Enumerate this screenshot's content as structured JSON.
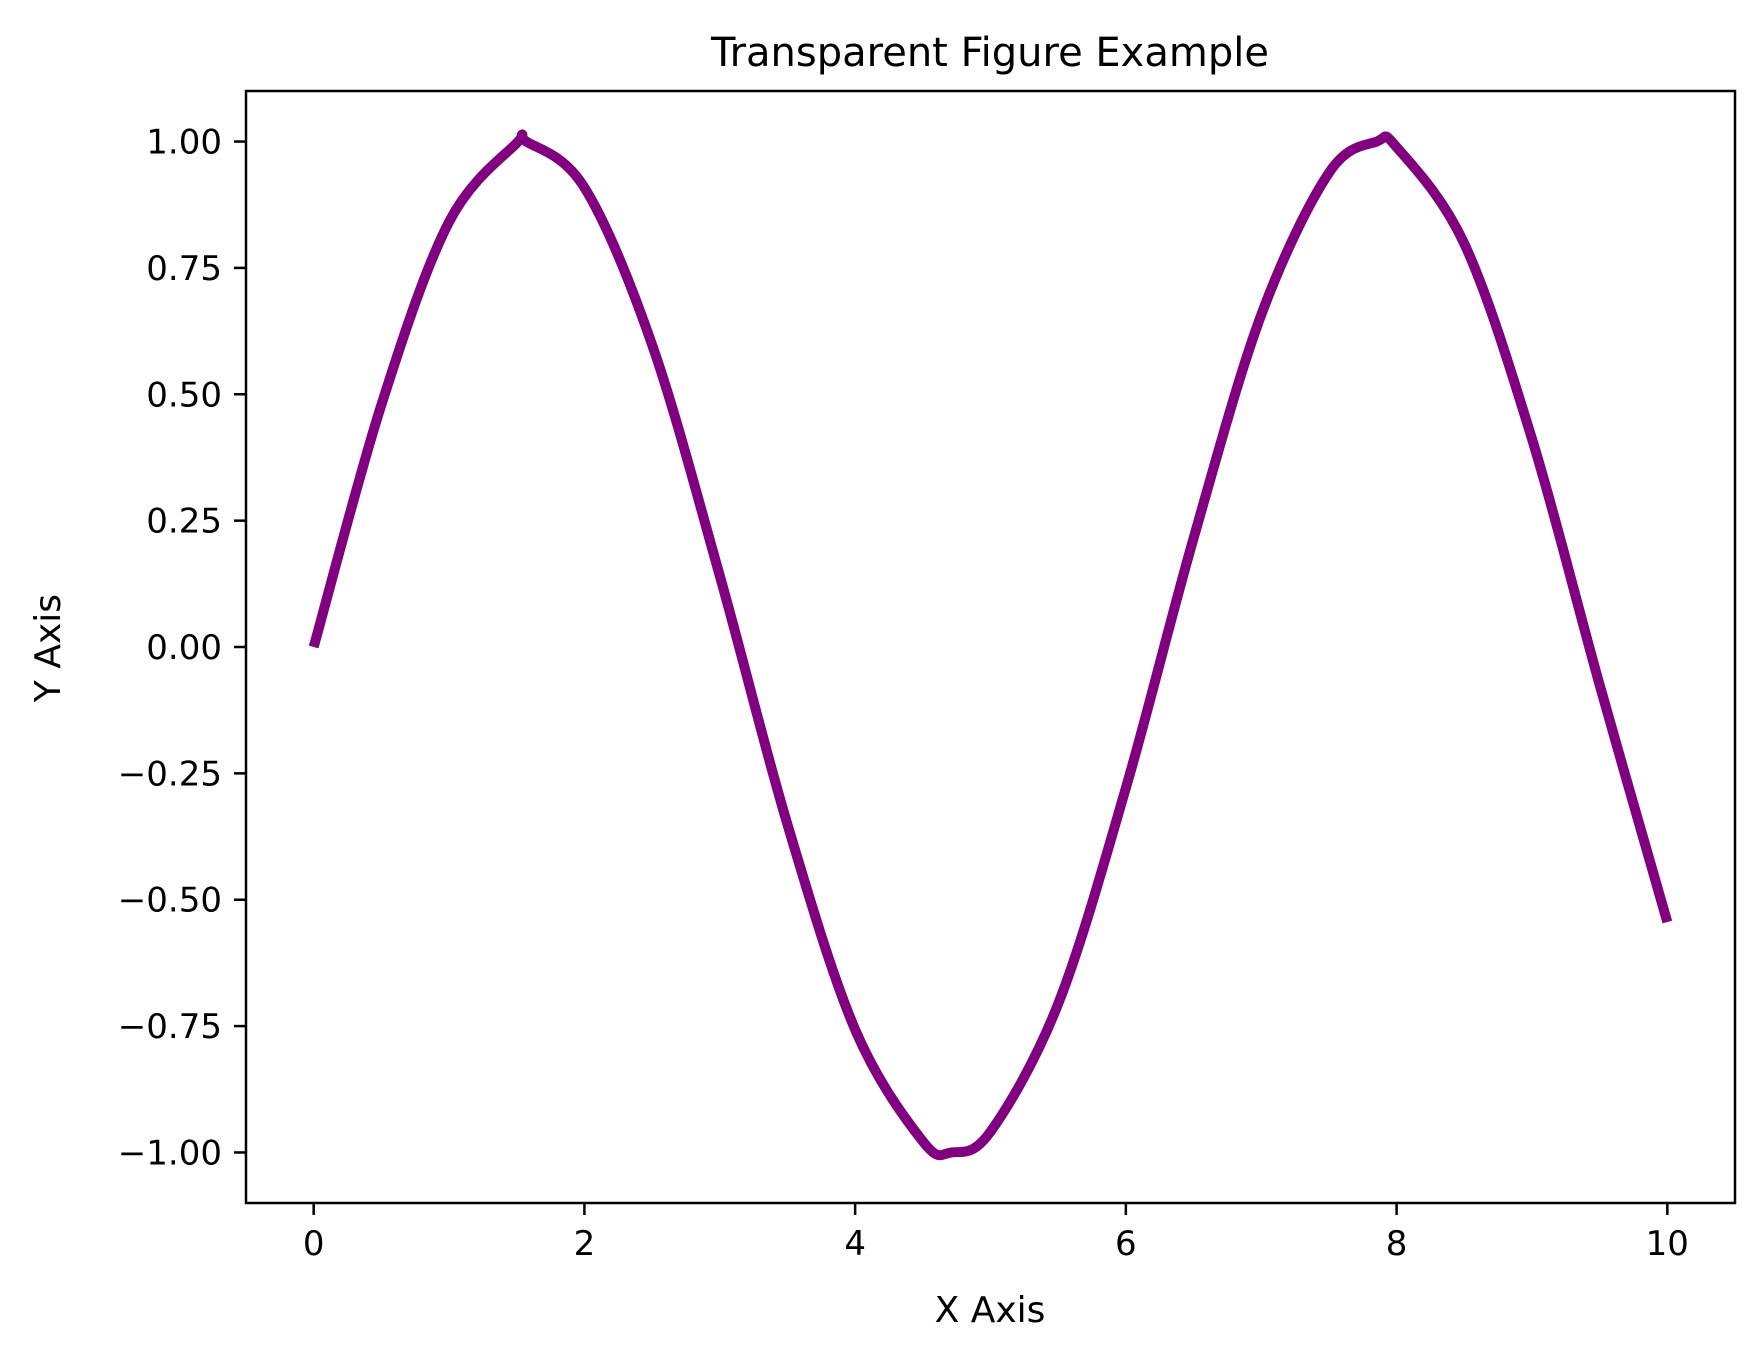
{
  "chart_data": {
    "type": "line",
    "title": "Transparent Figure Example",
    "xlabel": "X Axis",
    "ylabel": "Y Axis",
    "xlim": [
      -0.5,
      10.5
    ],
    "ylim": [
      -1.1,
      1.1
    ],
    "xticks": [
      0,
      2,
      4,
      6,
      8,
      10
    ],
    "xtick_labels": [
      "0",
      "2",
      "4",
      "6",
      "8",
      "10"
    ],
    "yticks": [
      1.0,
      0.75,
      0.5,
      0.25,
      0.0,
      -0.25,
      -0.5,
      -0.75,
      -1.0
    ],
    "ytick_labels": [
      "1.00",
      "0.75",
      "0.50",
      "0.25",
      "0.00",
      "−0.25",
      "−0.50",
      "−0.75",
      "−1.00"
    ],
    "grid": false,
    "legend": false,
    "series": [
      {
        "color": "#800080",
        "x": [
          0.0,
          0.5,
          1.0,
          1.5,
          1.571,
          2.0,
          2.5,
          3.0,
          3.5,
          4.0,
          4.5,
          4.712,
          5.0,
          5.5,
          6.0,
          6.5,
          7.0,
          7.5,
          7.854,
          8.0,
          8.5,
          9.0,
          9.5,
          10.0
        ],
        "y": [
          0.0,
          0.479,
          0.841,
          0.997,
          1.0,
          0.909,
          0.598,
          0.141,
          -0.351,
          -0.757,
          -0.978,
          -1.0,
          -0.959,
          -0.706,
          -0.279,
          0.215,
          0.657,
          0.938,
          1.0,
          0.989,
          0.798,
          0.412,
          -0.075,
          -0.544
        ]
      }
    ]
  }
}
